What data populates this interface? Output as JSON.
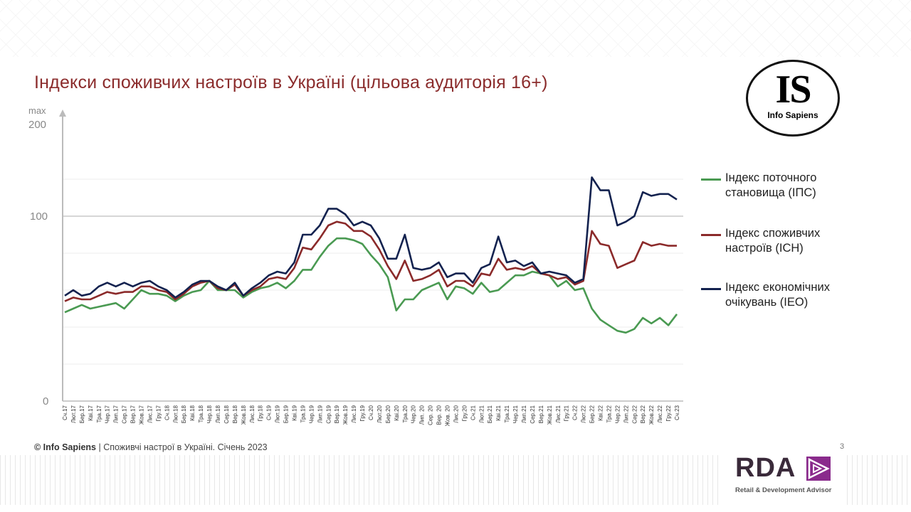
{
  "title": "Індекси споживчих настроїв в Україні (цільова аудиторія 16+)",
  "logo_is": {
    "letters": "IS",
    "name": "Info Sapiens"
  },
  "footer": {
    "brand": "© Info Sapiens",
    "text": " | Споживчі настрої в Україні. Січень 2023"
  },
  "page_number": "3",
  "logo_rda": {
    "letters": "RDA",
    "tagline": "Retail & Development Advisor"
  },
  "colors": {
    "ipc": "#4a9a52",
    "ich": "#8b2a2a",
    "ieo": "#13224f",
    "title": "#8b2c2c"
  },
  "chart_data": {
    "type": "line",
    "title": "Індекси споживчих настроїв в Україні (цільова аудиторія 16+)",
    "y_axis": {
      "max_label": "max",
      "max_value_label": "200",
      "tick_labels": [
        "0",
        "100"
      ],
      "range_shown": [
        0,
        130
      ],
      "gridlines": [
        0,
        20,
        40,
        60,
        80,
        100,
        120
      ]
    },
    "grid": true,
    "legend_placement": "right",
    "categories": [
      "Сч.17",
      "Лют.17",
      "Бер.17",
      "Кві.17",
      "Тра.17",
      "Чер.17",
      "Лип.17",
      "Сер.17",
      "Вер.17",
      "Жов.17",
      "Лис.17",
      "Гру.17",
      "Сч.18",
      "Лют.18",
      "Бер.18",
      "Кві.18",
      "Тра.18",
      "Чер.18",
      "Лип.18",
      "Сер.18",
      "Вер.18",
      "Жов.18",
      "Лис.18",
      "Гру.18",
      "Сч.19",
      "Лют.19",
      "Бер.19",
      "Кві.19",
      "Тра.19",
      "Чер.19",
      "Лип.19",
      "Сер.19",
      "Вер.19",
      "Жов.19",
      "Лис.19",
      "Гру.19",
      "Сч.20",
      "Лют.20",
      "Бер.20",
      "Кві.20",
      "Тра.20",
      "Чер.20",
      "Лип. 20",
      "Сер. 20",
      "Вер. 20",
      "Жов. 20",
      "Лис.20",
      "Гру.20",
      "Сч.21",
      "Лют.21",
      "Бер.21",
      "Кві.21",
      "Тра.21",
      "Чер.21",
      "Лип.21",
      "Сер.21",
      "Вер.21",
      "Жов.21",
      "Лис.21",
      "Гру.21",
      "Сч.22",
      "Лют.22",
      "Бер.22",
      "Кві.22",
      "Тра.22",
      "Чер.22",
      "Лип.22",
      "Сер.22",
      "Вер.22",
      "Жов.22",
      "Лис.22",
      "Гру.22",
      "Сч.23"
    ],
    "series": [
      {
        "key": "ipc",
        "name": "Індекс поточного становища (ІПС)",
        "values": [
          48,
          50,
          52,
          50,
          51,
          52,
          53,
          50,
          55,
          60,
          58,
          58,
          57,
          54,
          57,
          59,
          60,
          65,
          60,
          60,
          60,
          56,
          59,
          61,
          62,
          64,
          61,
          65,
          71,
          71,
          78,
          84,
          88,
          88,
          87,
          85,
          79,
          74,
          67,
          49,
          55,
          55,
          60,
          62,
          64,
          55,
          62,
          61,
          58,
          64,
          59,
          60,
          64,
          68,
          68,
          70,
          69,
          68,
          62,
          65,
          60,
          61,
          50,
          44,
          41,
          38,
          37,
          39,
          45,
          42,
          45,
          41,
          47
        ]
      },
      {
        "key": "ich",
        "name": "Індекс споживчих настроїв (ІСН)",
        "values": [
          54,
          56,
          55,
          55,
          57,
          59,
          58,
          59,
          59,
          62,
          62,
          60,
          59,
          55,
          58,
          62,
          64,
          65,
          61,
          60,
          63,
          57,
          60,
          62,
          66,
          67,
          66,
          72,
          83,
          82,
          88,
          95,
          97,
          96,
          92,
          92,
          89,
          82,
          73,
          66,
          76,
          65,
          66,
          68,
          71,
          62,
          65,
          65,
          62,
          69,
          68,
          77,
          71,
          72,
          71,
          73,
          69,
          68,
          66,
          67,
          63,
          65,
          92,
          85,
          84,
          72,
          74,
          76,
          86,
          84,
          85,
          84,
          84
        ]
      },
      {
        "key": "ieo",
        "name": "Індекс економічних очікувань (ІЕО)",
        "values": [
          57,
          60,
          57,
          58,
          62,
          64,
          62,
          64,
          62,
          64,
          65,
          62,
          60,
          56,
          59,
          63,
          65,
          65,
          62,
          60,
          64,
          57,
          61,
          64,
          68,
          70,
          69,
          75,
          90,
          90,
          95,
          104,
          104,
          101,
          95,
          97,
          95,
          88,
          77,
          77,
          90,
          72,
          71,
          72,
          75,
          67,
          69,
          69,
          64,
          72,
          74,
          89,
          75,
          76,
          73,
          75,
          69,
          70,
          69,
          68,
          64,
          66,
          121,
          114,
          114,
          95,
          97,
          100,
          113,
          111,
          112,
          112,
          109
        ]
      }
    ]
  }
}
